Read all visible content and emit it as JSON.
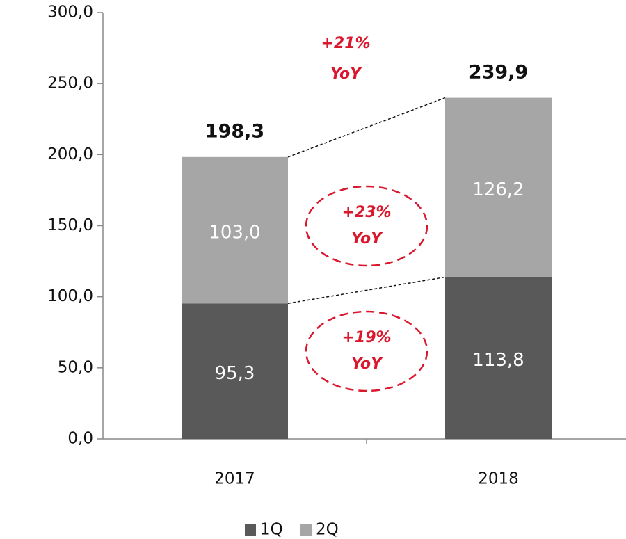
{
  "chart_data": {
    "type": "stacked_bar",
    "categories": [
      "2017",
      "2018"
    ],
    "series": [
      {
        "name": "1Q",
        "color": "#595959",
        "values": [
          95.3,
          113.8
        ],
        "value_labels": [
          "95,3",
          "113,8"
        ]
      },
      {
        "name": "2Q",
        "color": "#a6a6a6",
        "values": [
          103.0,
          126.2
        ],
        "value_labels": [
          "103,0",
          "126,2"
        ]
      }
    ],
    "totals": {
      "values": [
        198.3,
        239.9
      ],
      "value_labels": [
        "198,3",
        "239,9"
      ]
    },
    "annotations": [
      {
        "lines": [
          "+21%",
          "YoY"
        ]
      },
      {
        "lines": [
          "+23%",
          "YoY"
        ]
      },
      {
        "lines": [
          "+19%",
          "YoY"
        ]
      }
    ],
    "ylim": [
      0,
      300
    ],
    "yticks": [
      {
        "value": 0,
        "label": "0,0"
      },
      {
        "value": 50,
        "label": "50,0"
      },
      {
        "value": 100,
        "label": "100,0"
      },
      {
        "value": 150,
        "label": "150,0"
      },
      {
        "value": 200,
        "label": "200,0"
      },
      {
        "value": 250,
        "label": "250,0"
      },
      {
        "value": 300,
        "label": "300,0"
      }
    ],
    "legend": "bottom"
  }
}
